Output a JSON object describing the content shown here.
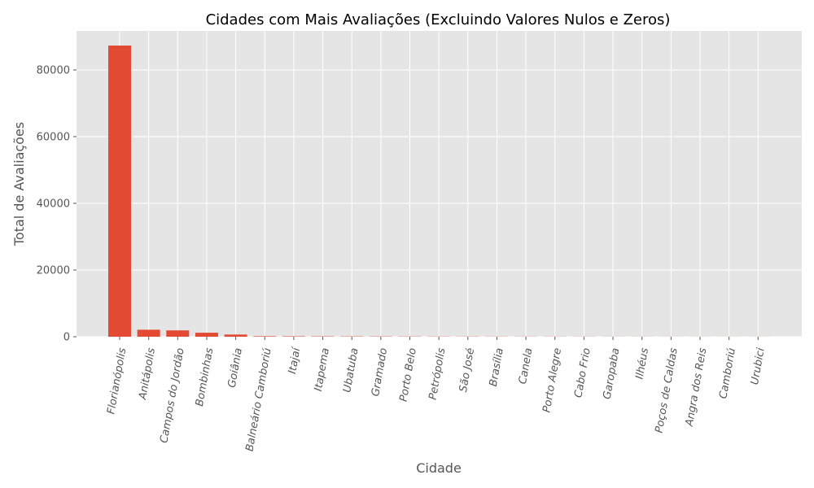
{
  "chart_data": {
    "type": "bar",
    "title": "Cidades com Mais Avaliações (Excluindo Valores Nulos e Zeros)",
    "xlabel": "Cidade",
    "ylabel": "Total de Avaliações",
    "categories": [
      "Florianópolis",
      "Anitápolis",
      "Campos do Jordão",
      "Bombinhas",
      "Goiânia",
      "Balneário Camboriú",
      "Itajaí",
      "Itapema",
      "Ubatuba",
      "Gramado",
      "Porto Belo",
      "Petrópolis",
      "São José",
      "Brasília",
      "Canela",
      "Porto Alegre",
      "Cabo Frio",
      "Garopaba",
      "Ilhéus",
      "Poços de Caldas",
      "Angra dos Reis",
      "Camboriú",
      "Urubici"
    ],
    "values": [
      87300,
      2100,
      1900,
      1200,
      650,
      150,
      120,
      100,
      90,
      80,
      70,
      60,
      55,
      50,
      45,
      40,
      35,
      30,
      28,
      25,
      22,
      20,
      18
    ],
    "yticks": [
      0,
      20000,
      40000,
      60000,
      80000
    ],
    "ylim": [
      0,
      91700
    ],
    "grid": true,
    "bar_color": "#E24A33",
    "background_color": "#E5E5E5"
  }
}
